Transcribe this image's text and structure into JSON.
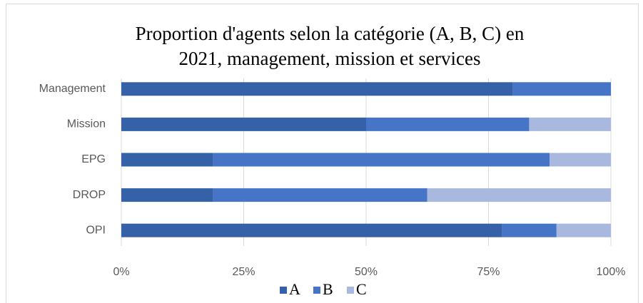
{
  "chart_data": {
    "type": "stacked-bar-horizontal",
    "title": [
      "Proportion d'agents selon la catégorie (A, B, C) en",
      "2021, management, mission et services"
    ],
    "categories": [
      "Management",
      "Mission",
      "EPG",
      "DROP",
      "OPI"
    ],
    "series": [
      {
        "name": "A",
        "color": "#3461a8",
        "values": [
          80,
          50,
          18.75,
          18.75,
          77.8
        ]
      },
      {
        "name": "B",
        "color": "#4674c6",
        "values": [
          20,
          33.3,
          68.75,
          43.75,
          11.1
        ]
      },
      {
        "name": "C",
        "color": "#a9b8de",
        "values": [
          0,
          16.7,
          12.5,
          37.5,
          11.1
        ]
      }
    ],
    "xlim": [
      0,
      100
    ],
    "xticks": [
      {
        "value": 0,
        "label": "0%"
      },
      {
        "value": 25,
        "label": "25%"
      },
      {
        "value": 50,
        "label": "50%"
      },
      {
        "value": 75,
        "label": "75%"
      },
      {
        "value": 100,
        "label": "100%"
      }
    ],
    "grid": true,
    "legend": "bottom"
  }
}
